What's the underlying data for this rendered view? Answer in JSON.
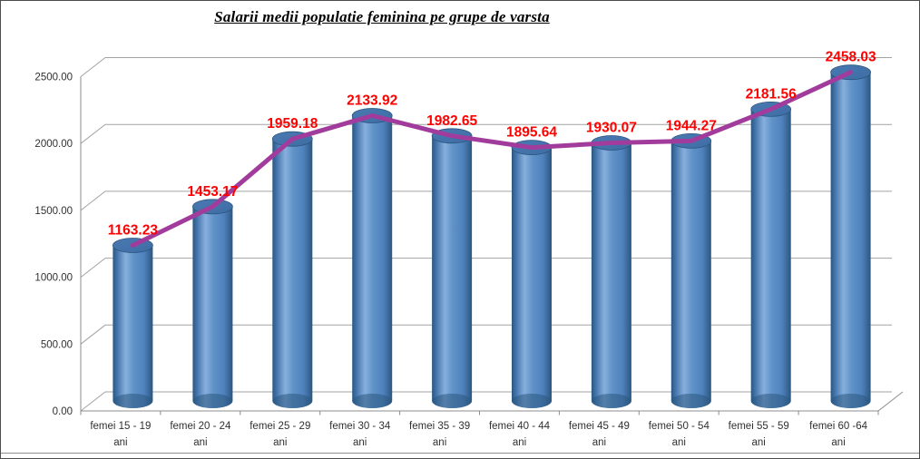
{
  "title": "Salarii medii populatie feminina pe grupe de varsta",
  "chart_data": {
    "type": "bar",
    "subtype": "3d-cylinder-columns-with-line-overlay",
    "title": "Salarii medii populatie feminina pe grupe de varsta",
    "categories": [
      "femei 15 - 19",
      "femei 20 - 24",
      "femei 25 - 29",
      "femei 30 - 34",
      "femei 35 - 39",
      "femei 40 - 44",
      "femei 45 - 49",
      "femei 50 - 54",
      "femei 55 - 59",
      "femei 60 -64"
    ],
    "category_unit": "ani",
    "values": [
      1163.23,
      1453.17,
      1959.18,
      2133.92,
      1982.65,
      1895.64,
      1930.07,
      1944.27,
      2181.56,
      2458.03
    ],
    "data_labels": [
      "1163.23",
      "1453.17",
      "1959.18",
      "2133.92",
      "1982.65",
      "1895.64",
      "1930.07",
      "1944.27",
      "2181.56",
      "2458.03"
    ],
    "y_ticks": [
      "0.00",
      "500.00",
      "1000.00",
      "1500.00",
      "2000.00",
      "2500.00"
    ],
    "y_tick_values": [
      0,
      500,
      1000,
      1500,
      2000,
      2500
    ],
    "ylim": [
      0,
      2500
    ],
    "xlabel": "",
    "ylabel": "",
    "grid": true,
    "legend": "none",
    "colors": {
      "bar_body_dark": "#2B577F",
      "bar_body_mid": "#4F81BD",
      "bar_body_light": "#87AFDD",
      "bar_top": "#3E6DA4",
      "bar_edge": "#2B557E",
      "series_line": "#A13C9D",
      "data_label": "#FF0000",
      "gridline": "#A3A3A3",
      "axis_line": "#8C8C8C",
      "tick_text": "#303030",
      "background": "#FFFFFF"
    }
  }
}
